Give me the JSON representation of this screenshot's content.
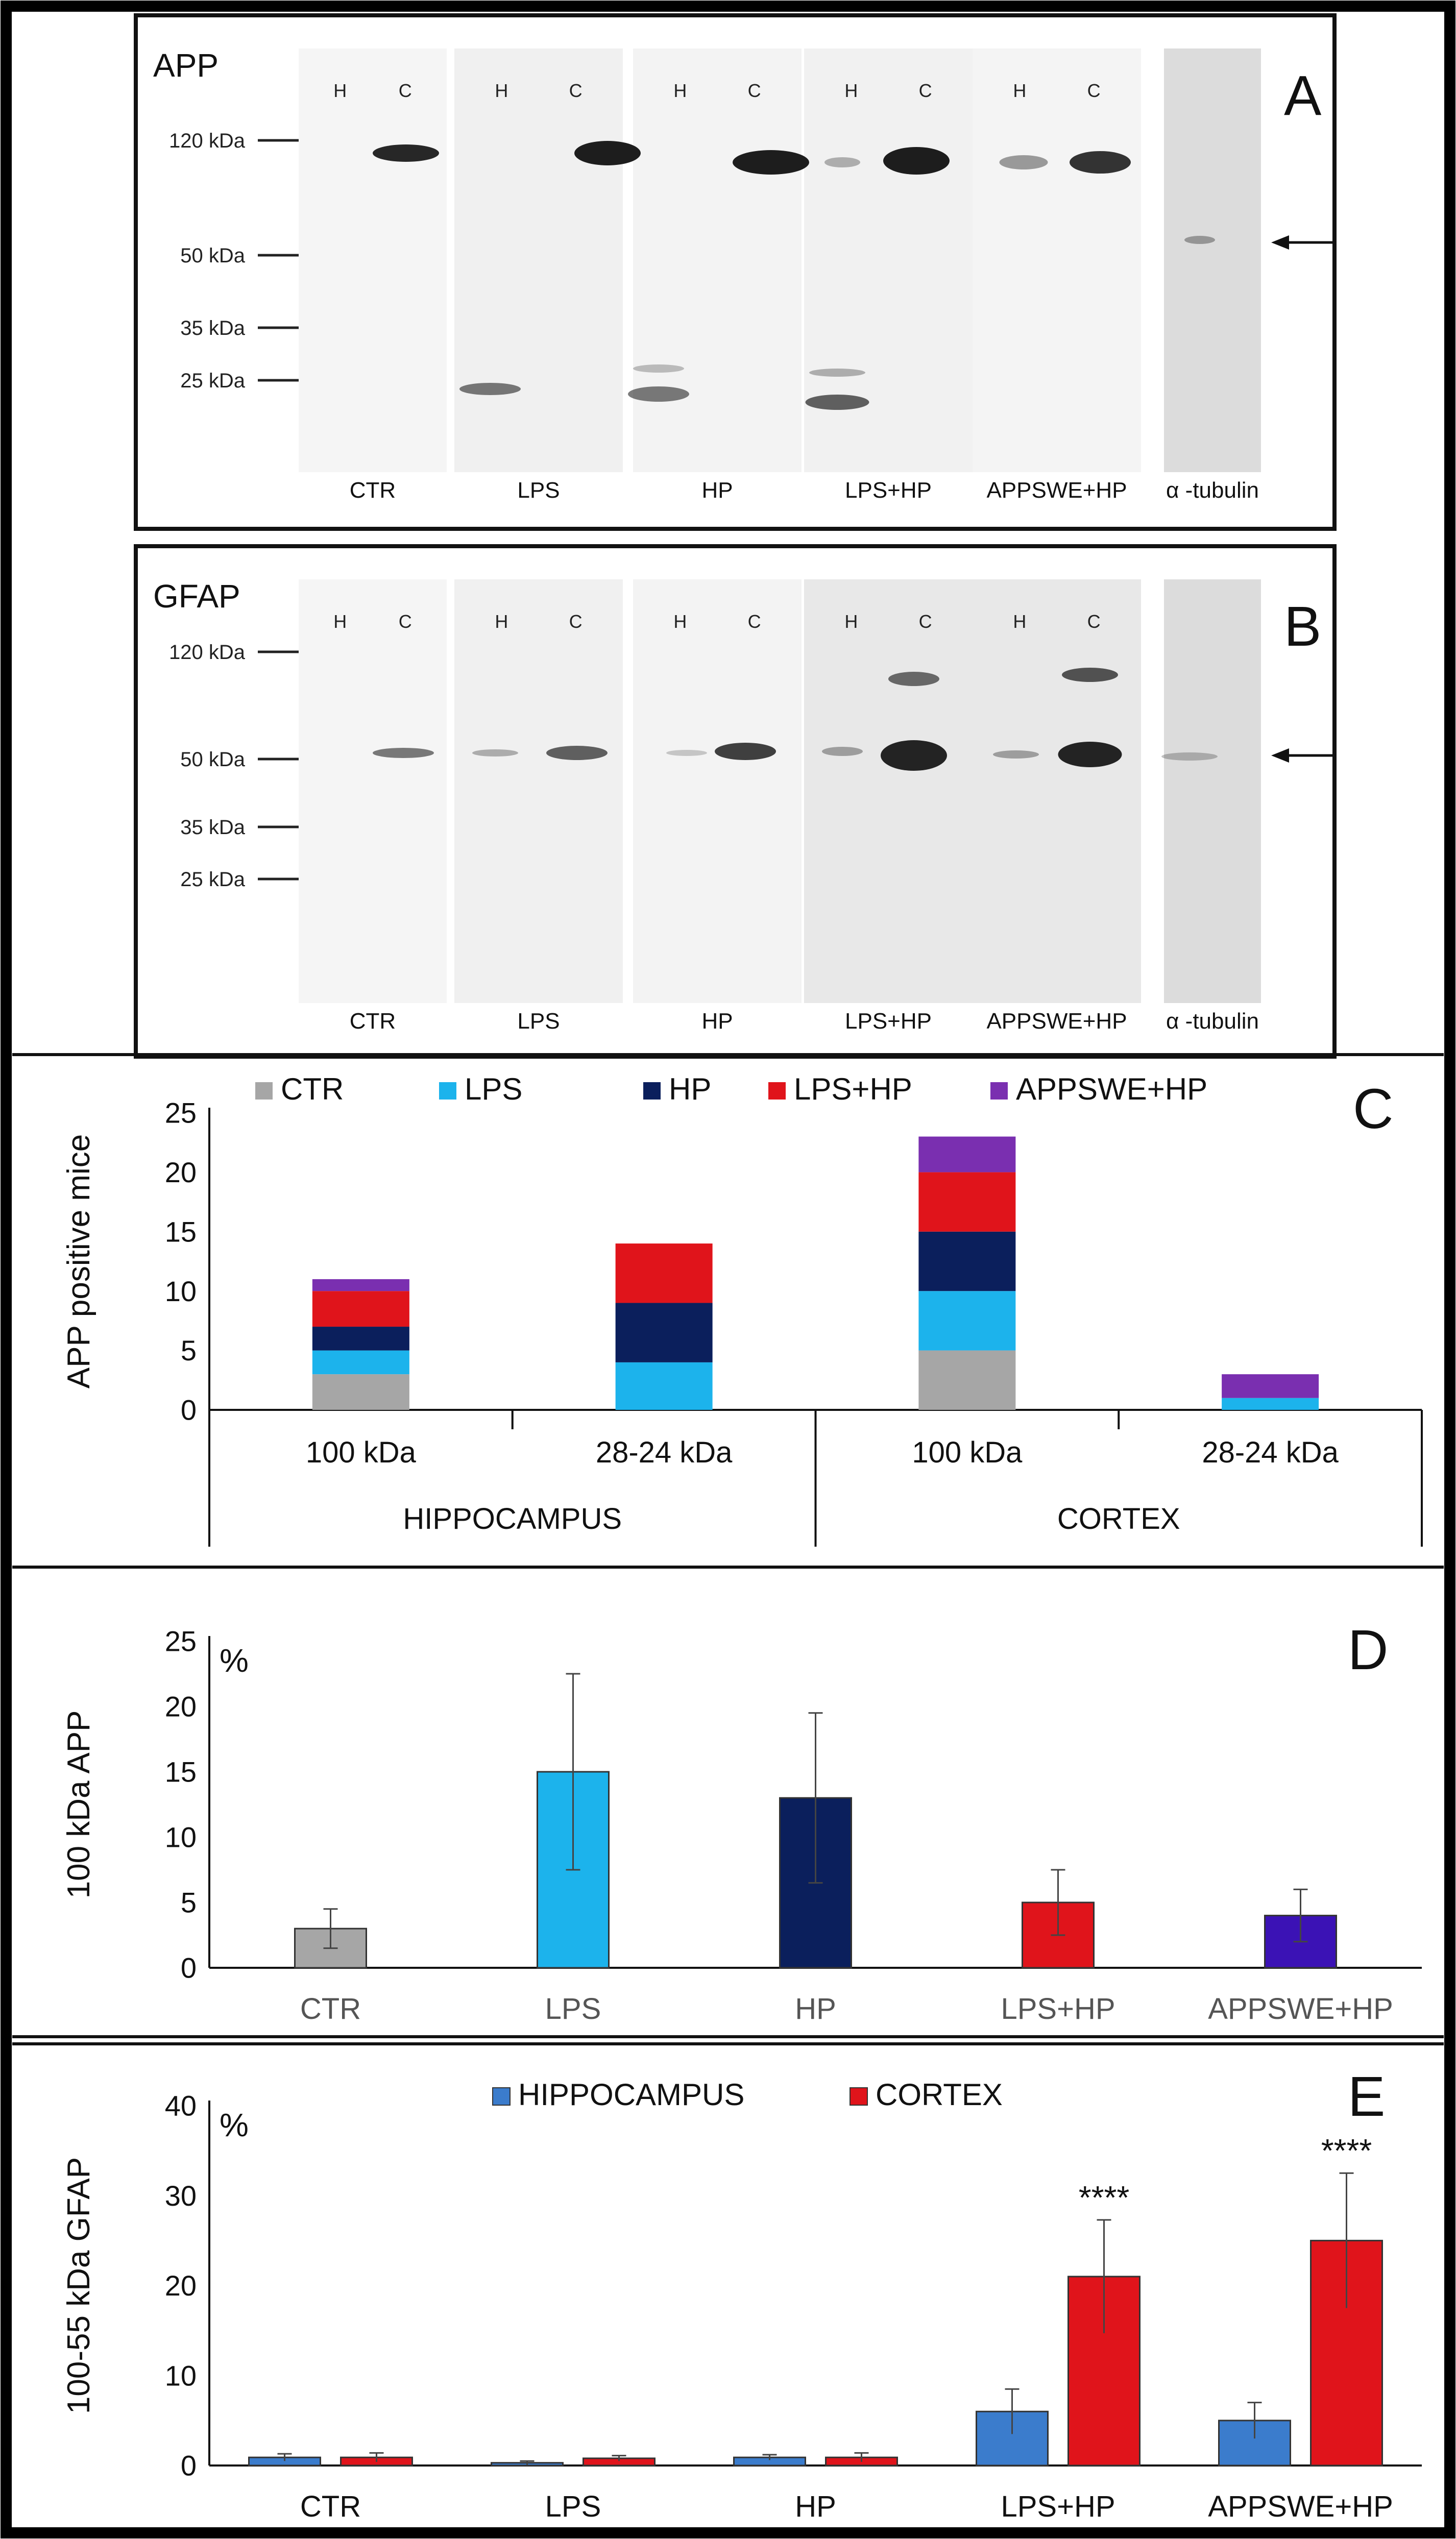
{
  "colors": {
    "ctr": "#a6a6a6",
    "lps": "#1cb3ec",
    "hp": "#0b1f5c",
    "lpshp": "#e0141b",
    "appswe": "#7a2fb0",
    "appswe_d": "#3b12b5",
    "hippo": "#3b7ccc",
    "cortex": "#e0141b"
  },
  "panel_a": {
    "letter": "A",
    "title": "APP",
    "markers": [
      "120 kDa",
      "50 kDa",
      "35 kDa",
      "25 kDa"
    ],
    "lanes": [
      {
        "label": "CTR",
        "h": "H",
        "c": "C"
      },
      {
        "label": "LPS",
        "h": "H",
        "c": "C"
      },
      {
        "label": "HP",
        "h": "H",
        "c": "C"
      },
      {
        "label": "LPS+HP",
        "h": "H",
        "c": "C"
      },
      {
        "label": "APPSWE+HP",
        "h": "H",
        "c": "C"
      },
      {
        "label": "α -tubulin"
      }
    ]
  },
  "panel_b": {
    "letter": "B",
    "title": "GFAP",
    "markers": [
      "120 kDa",
      "50 kDa",
      "35 kDa",
      "25 kDa"
    ],
    "lanes": [
      {
        "label": "CTR",
        "h": "H",
        "c": "C"
      },
      {
        "label": "LPS",
        "h": "H",
        "c": "C"
      },
      {
        "label": "HP",
        "h": "H",
        "c": "C"
      },
      {
        "label": "LPS+HP",
        "h": "H",
        "c": "C"
      },
      {
        "label": "APPSWE+HP",
        "h": "H",
        "c": "C"
      },
      {
        "label": "α -tubulin"
      }
    ]
  },
  "chart_data": [
    {
      "panel": "C",
      "type": "bar",
      "stacked": true,
      "ylabel": "APP positive mice",
      "ylim": [
        0,
        25
      ],
      "yticks": [
        0,
        5,
        10,
        15,
        20,
        25
      ],
      "categories": [
        "100 kDa",
        "28-24 kDa",
        "100 kDa",
        "28-24 kDa"
      ],
      "groups": [
        {
          "label": "HIPPOCAMPUS",
          "span": [
            0,
            1
          ]
        },
        {
          "label": "CORTEX",
          "span": [
            2,
            3
          ]
        }
      ],
      "legend": [
        "CTR",
        "LPS",
        "HP",
        "LPS+HP",
        "APPSWE+HP"
      ],
      "series": [
        {
          "name": "CTR",
          "values": [
            3,
            0,
            5,
            0
          ]
        },
        {
          "name": "LPS",
          "values": [
            2,
            4,
            5,
            1
          ]
        },
        {
          "name": "HP",
          "values": [
            2,
            5,
            5,
            0
          ]
        },
        {
          "name": "LPS+HP",
          "values": [
            3,
            5,
            5,
            0
          ]
        },
        {
          "name": "APPSWE+HP",
          "values": [
            1,
            0,
            3,
            2
          ]
        }
      ]
    },
    {
      "panel": "D",
      "type": "bar",
      "ylabel": "100 kDa APP",
      "unit": "%",
      "ylim": [
        0,
        25
      ],
      "yticks": [
        0,
        5,
        10,
        15,
        20,
        25
      ],
      "categories": [
        "CTR",
        "LPS",
        "HP",
        "LPS+HP",
        "APPSWE+HP"
      ],
      "values": [
        3,
        15,
        13,
        5,
        4
      ],
      "errors": [
        1.5,
        7.5,
        6.5,
        2.5,
        2
      ]
    },
    {
      "panel": "E",
      "type": "bar",
      "ylabel": "100-55 kDa GFAP",
      "unit": "%",
      "ylim": [
        0,
        40
      ],
      "yticks": [
        0,
        10,
        20,
        30,
        40
      ],
      "categories": [
        "CTR",
        "LPS",
        "HP",
        "LPS+HP",
        "APPSWE+HP"
      ],
      "legend": [
        "HIPPOCAMPUS",
        "CORTEX"
      ],
      "series": [
        {
          "name": "HIPPOCAMPUS",
          "values": [
            0.9,
            0.3,
            0.9,
            6,
            5
          ],
          "errors": [
            0.4,
            0.2,
            0.3,
            2.5,
            2
          ]
        },
        {
          "name": "CORTEX",
          "values": [
            0.9,
            0.8,
            0.9,
            21,
            25
          ],
          "errors": [
            0.5,
            0.3,
            0.5,
            6.3,
            7.5
          ]
        }
      ],
      "annotations": [
        "****",
        "****"
      ]
    }
  ]
}
